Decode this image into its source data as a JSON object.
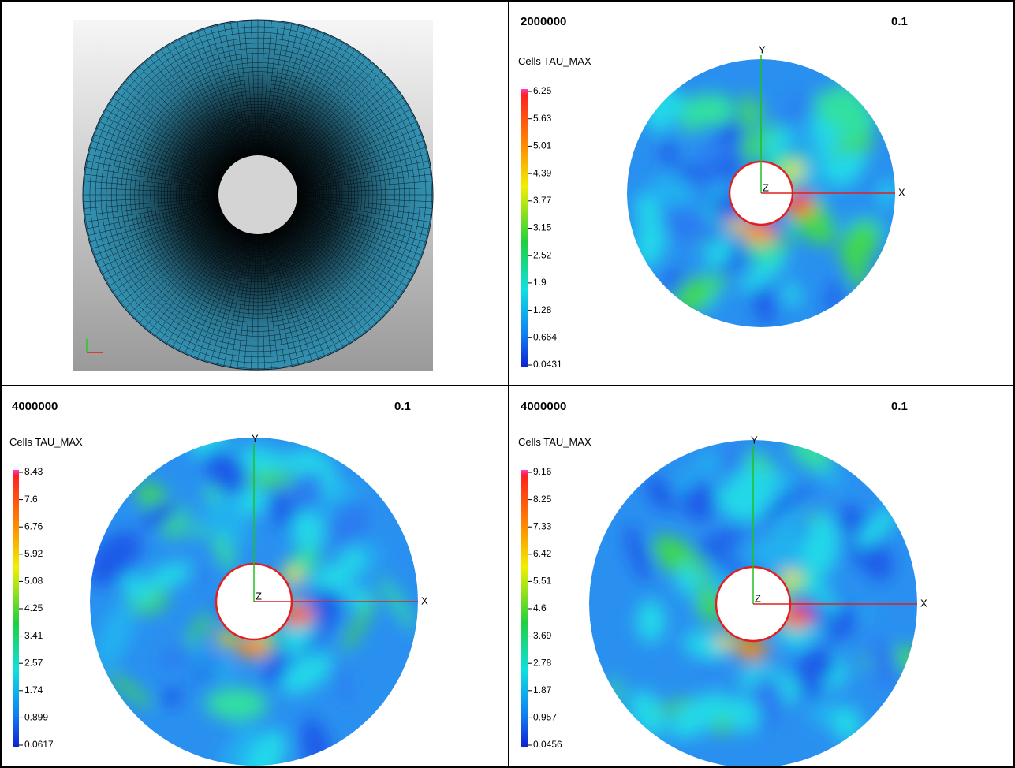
{
  "results": [
    {
      "label": "2000000",
      "time": "0.1",
      "legend_title": "Cells TAU_MAX",
      "legend_ticks": [
        "6.25",
        "5.63",
        "5.01",
        "4.39",
        "3.77",
        "3.15",
        "2.52",
        "1.9",
        "1.28",
        "0.664",
        "0.0431"
      ],
      "axes": {
        "x": "X",
        "y": "Y",
        "z": "Z"
      }
    },
    {
      "label": "4000000",
      "time": "0.1",
      "legend_title": "Cells TAU_MAX",
      "legend_ticks": [
        "8.43",
        "7.6",
        "6.76",
        "5.92",
        "5.08",
        "4.25",
        "3.41",
        "2.57",
        "1.74",
        "0.899",
        "0.0617"
      ],
      "axes": {
        "x": "X",
        "y": "Y",
        "z": "Z"
      }
    },
    {
      "label": "4000000",
      "time": "0.1",
      "legend_title": "Cells TAU_MAX",
      "legend_ticks": [
        "9.16",
        "8.25",
        "7.33",
        "6.42",
        "5.51",
        "4.6",
        "3.69",
        "2.78",
        "1.87",
        "0.957",
        "0.0456"
      ],
      "axes": {
        "x": "X",
        "y": "Y",
        "z": "Z"
      }
    }
  ]
}
